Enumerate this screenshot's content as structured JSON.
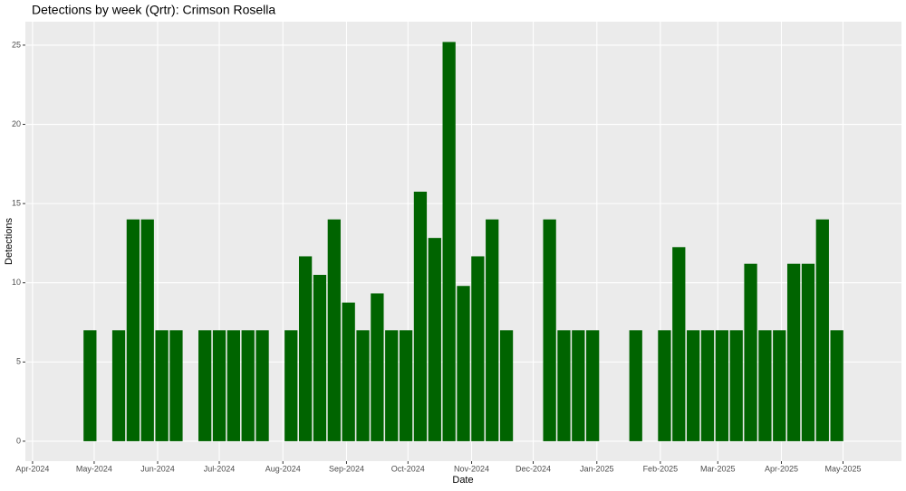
{
  "chart_data": {
    "type": "bar",
    "title": "Detections by week (Qrtr): Crimson Rosella",
    "x_label": "Date",
    "y_label": "Detections",
    "categories": [
      null,
      null,
      null,
      null,
      null,
      null,
      null,
      null,
      null,
      null,
      null,
      null,
      null,
      null,
      null,
      null,
      null,
      null,
      null,
      null,
      null,
      null,
      null,
      null,
      null,
      null,
      null,
      null,
      null,
      null,
      null,
      null,
      null,
      null,
      null,
      null,
      null,
      null,
      null,
      null,
      null,
      null,
      null,
      null,
      null,
      null,
      null,
      null,
      null,
      null,
      null,
      null,
      null
    ],
    "values": [
      7,
      null,
      7,
      14,
      14,
      7,
      7,
      null,
      7,
      7,
      7,
      7,
      7,
      null,
      7,
      11.67,
      10.5,
      14,
      8.75,
      7,
      9.33,
      7,
      7,
      15.75,
      12.83,
      25.2,
      9.8,
      11.67,
      14,
      7,
      null,
      null,
      14,
      7,
      7,
      7,
      null,
      null,
      7,
      null,
      7,
      12.25,
      7,
      7,
      7,
      7,
      11.2,
      7,
      7,
      11.2,
      11.2,
      14,
      7
    ],
    "color": "#006400",
    "xlim": [
      -4.5,
      56.5
    ],
    "xticks": [
      {
        "value": -4,
        "label": "Apr-2024"
      },
      {
        "value": 0.29,
        "label": "May-2024"
      },
      {
        "value": 4.71,
        "label": "Jun-2024"
      },
      {
        "value": 9,
        "label": "Jul-2024"
      },
      {
        "value": 13.43,
        "label": "Aug-2024"
      },
      {
        "value": 17.86,
        "label": "Sep-2024"
      },
      {
        "value": 22.14,
        "label": "Oct-2024"
      },
      {
        "value": 26.57,
        "label": "Nov-2024"
      },
      {
        "value": 30.86,
        "label": "Dec-2024"
      },
      {
        "value": 35.29,
        "label": "Jan-2025"
      },
      {
        "value": 39.71,
        "label": "Feb-2025"
      },
      {
        "value": 43.71,
        "label": "Mar-2025"
      },
      {
        "value": 48.14,
        "label": "Apr-2025"
      },
      {
        "value": 52.43,
        "label": "May-2025"
      }
    ],
    "ylim": [
      -1.26,
      26.48
    ],
    "yticks": [
      0,
      5,
      10,
      15,
      20,
      25
    ],
    "grid": true
  }
}
